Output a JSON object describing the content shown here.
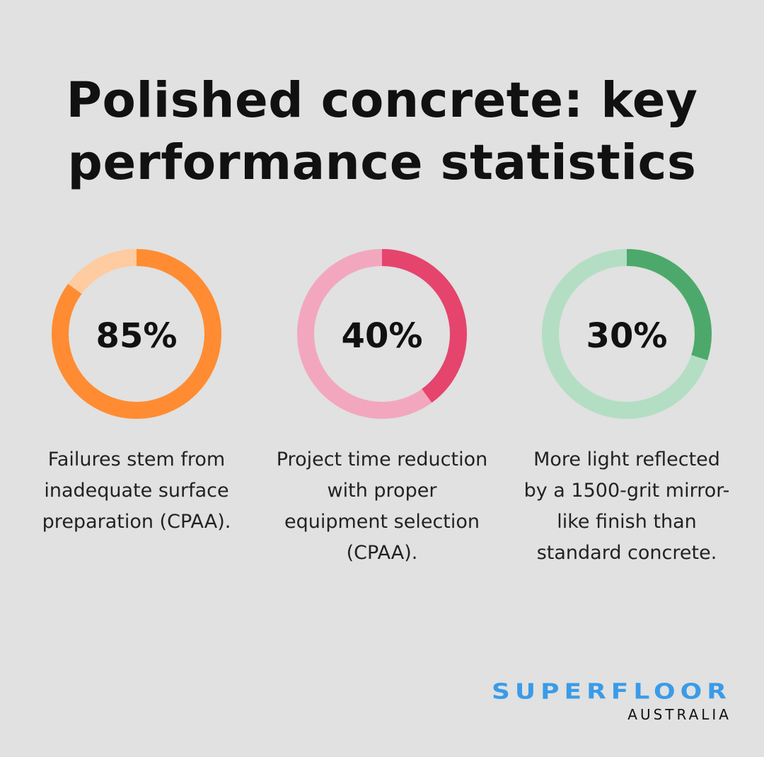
{
  "title": "Polished concrete: key performance statistics",
  "chart_data": {
    "type": "donut",
    "items": [
      {
        "value": 85,
        "label": "85%",
        "description": "Failures stem from inadequate surface preparation (CPAA).",
        "color": "#ff8c33",
        "track_color": "#ffcba0"
      },
      {
        "value": 40,
        "label": "40%",
        "description": "Project time reduction with proper equipment selection (CPAA).",
        "color": "#e5446d",
        "track_color": "#f2a7bf"
      },
      {
        "value": 30,
        "label": "30%",
        "description": "More light reflected by a 1500-grit mirror-like finish than standard concrete.",
        "color": "#4ca96b",
        "track_color": "#b3dec4"
      }
    ]
  },
  "logo": {
    "line1": "SUPERFLOOR",
    "line2": "AUSTRALIA"
  }
}
